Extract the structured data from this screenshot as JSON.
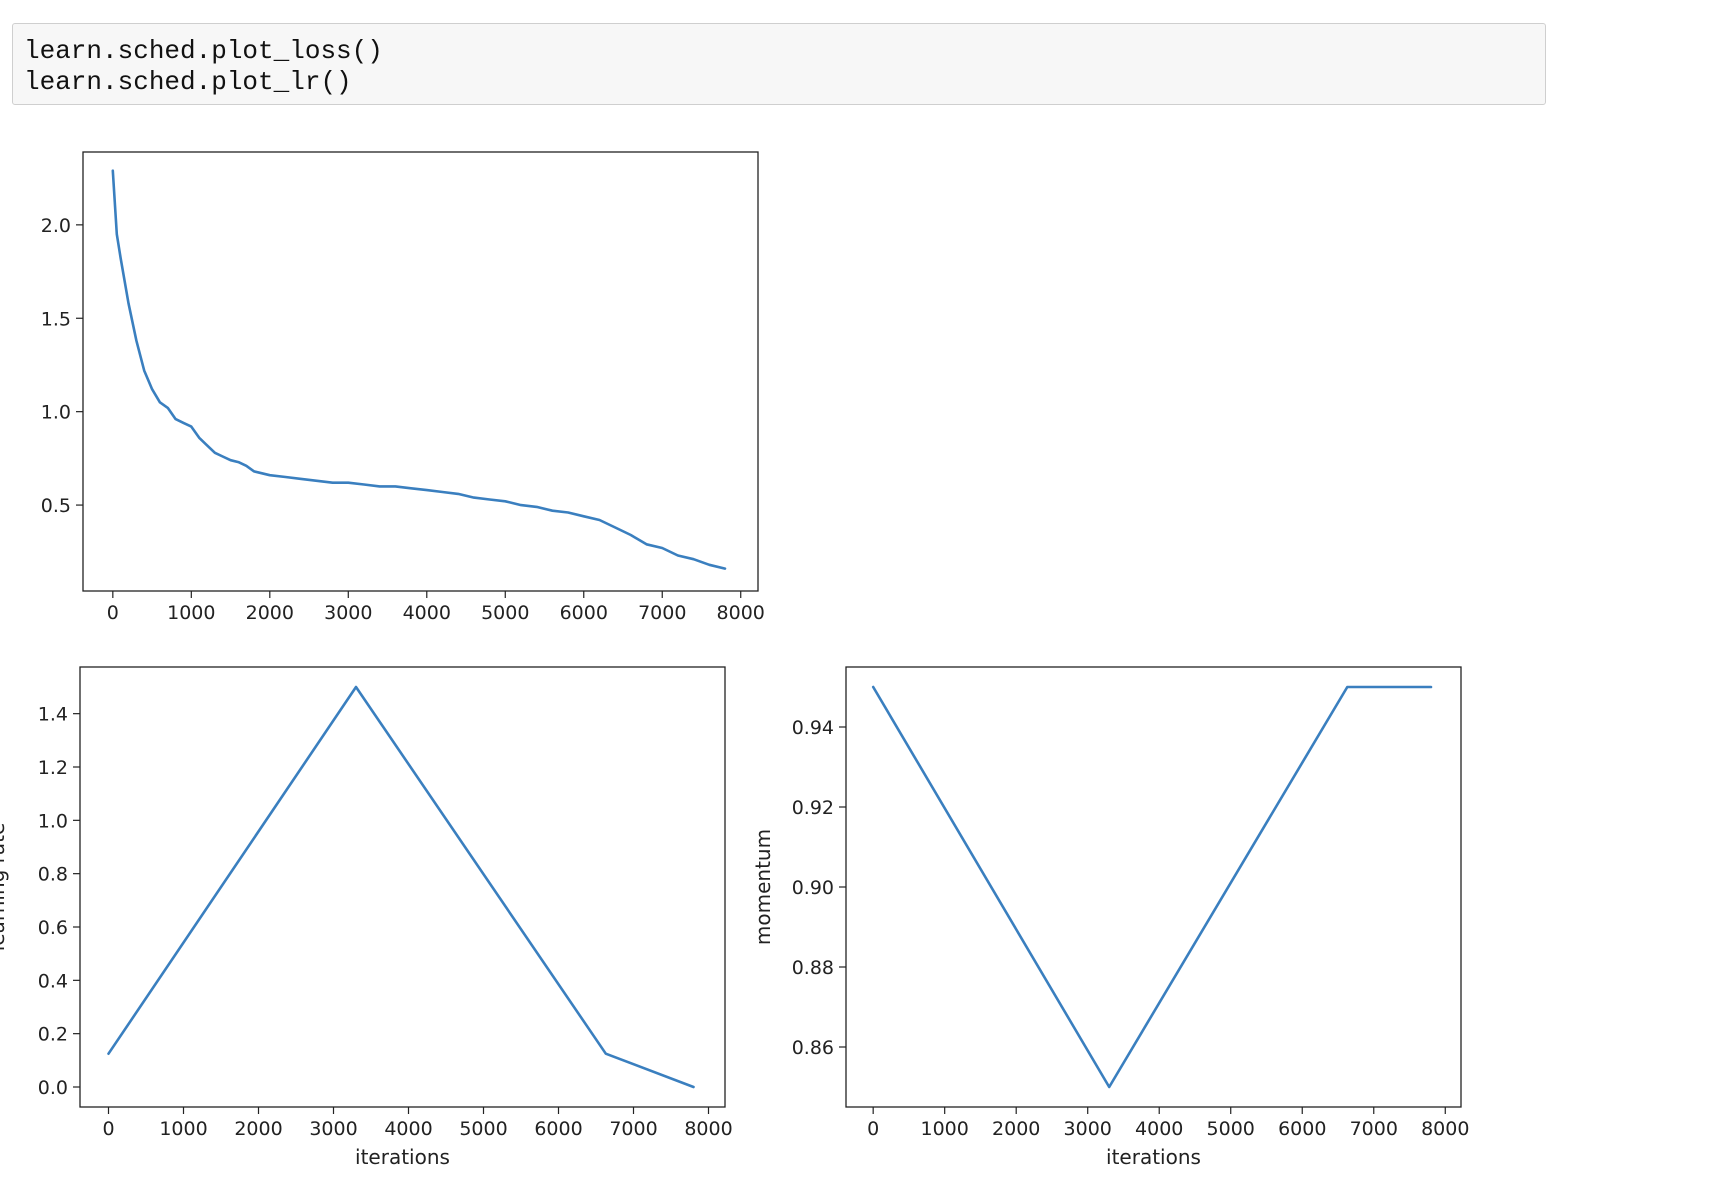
{
  "code_cell": {
    "lines": [
      "learn.sched.plot_loss()",
      "learn.sched.plot_lr()"
    ]
  },
  "colors": {
    "line": "#3a7fbf",
    "axes": "#222222",
    "code_bg": "#f7f7f7"
  },
  "chart_data": [
    {
      "type": "line",
      "title": "",
      "xlabel": "",
      "ylabel": "",
      "xlim": [
        -380,
        8220
      ],
      "ylim": [
        0.04,
        2.39
      ],
      "xticks": [
        0,
        1000,
        2000,
        3000,
        4000,
        5000,
        6000,
        7000,
        8000
      ],
      "yticks": [
        0.5,
        1.0,
        1.5,
        2.0
      ],
      "ytick_decimals": 1,
      "series": [
        {
          "x": [
            0,
            50,
            100,
            200,
            300,
            400,
            500,
            600,
            700,
            800,
            900,
            1000,
            1100,
            1200,
            1300,
            1400,
            1500,
            1600,
            1700,
            1800,
            1900,
            2000,
            2200,
            2400,
            2600,
            2800,
            3000,
            3200,
            3400,
            3600,
            3800,
            4000,
            4200,
            4400,
            4600,
            4800,
            5000,
            5200,
            5400,
            5600,
            5800,
            6000,
            6200,
            6400,
            6600,
            6800,
            7000,
            7200,
            7400,
            7600,
            7800
          ],
          "y": [
            2.29,
            1.95,
            1.82,
            1.58,
            1.38,
            1.22,
            1.12,
            1.05,
            1.02,
            0.96,
            0.94,
            0.92,
            0.86,
            0.82,
            0.78,
            0.76,
            0.74,
            0.73,
            0.71,
            0.68,
            0.67,
            0.66,
            0.65,
            0.64,
            0.63,
            0.62,
            0.62,
            0.61,
            0.6,
            0.6,
            0.59,
            0.58,
            0.57,
            0.56,
            0.54,
            0.53,
            0.52,
            0.5,
            0.49,
            0.47,
            0.46,
            0.44,
            0.42,
            0.38,
            0.34,
            0.29,
            0.27,
            0.23,
            0.21,
            0.18,
            0.16
          ]
        }
      ]
    },
    {
      "type": "line",
      "title": "",
      "xlabel": "iterations",
      "ylabel": "learning rate",
      "xlim": [
        -380,
        8220
      ],
      "ylim": [
        -0.075,
        1.575
      ],
      "xticks": [
        0,
        1000,
        2000,
        3000,
        4000,
        5000,
        6000,
        7000,
        8000
      ],
      "yticks": [
        0.0,
        0.2,
        0.4,
        0.6,
        0.8,
        1.0,
        1.2,
        1.4
      ],
      "ytick_decimals": 1,
      "series": [
        {
          "x": [
            0,
            3300,
            6630,
            7800
          ],
          "y": [
            0.125,
            1.5,
            0.125,
            0.0
          ]
        }
      ]
    },
    {
      "type": "line",
      "title": "",
      "xlabel": "iterations",
      "ylabel": "momentum",
      "xlim": [
        -380,
        8220
      ],
      "ylim": [
        0.845,
        0.955
      ],
      "xticks": [
        0,
        1000,
        2000,
        3000,
        4000,
        5000,
        6000,
        7000,
        8000
      ],
      "yticks": [
        0.86,
        0.88,
        0.9,
        0.92,
        0.94
      ],
      "ytick_decimals": 2,
      "series": [
        {
          "x": [
            0,
            3300,
            6630,
            7800
          ],
          "y": [
            0.95,
            0.85,
            0.95,
            0.95
          ]
        }
      ]
    }
  ]
}
